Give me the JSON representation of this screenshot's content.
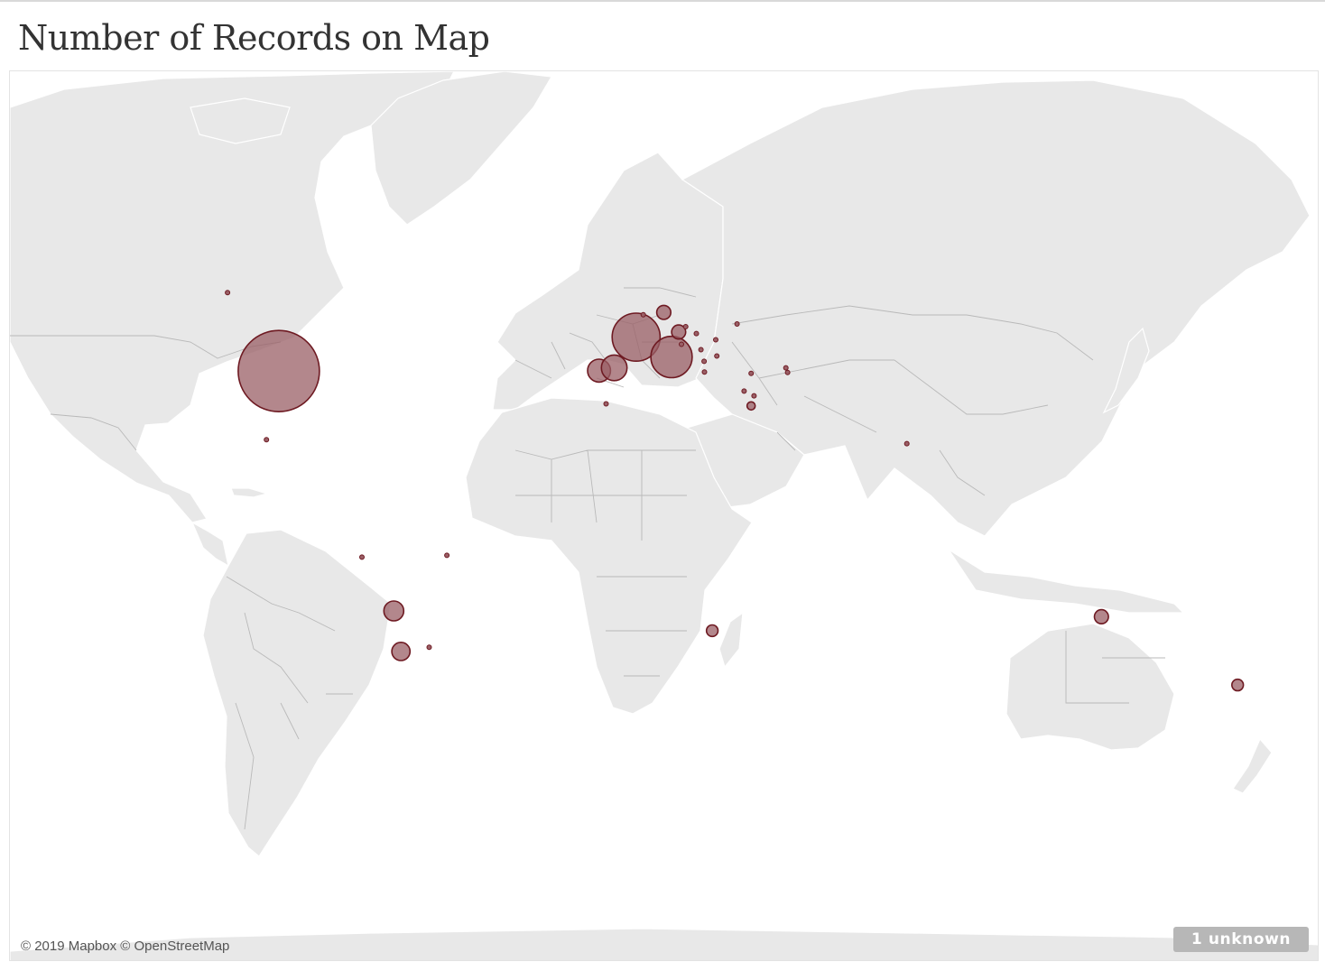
{
  "title": "Number of Records on Map",
  "attribution": "© 2019 Mapbox © OpenStreetMap",
  "unknown_indicator": "1 unknown",
  "colors": {
    "land": "#e8e8e8",
    "water": "#ffffff",
    "border": "#b9b9b9",
    "mark_fill": "#9a5f66",
    "mark_stroke": "#6e1a22",
    "badge": "#b7b7b7"
  },
  "chart_data": {
    "type": "scatter",
    "encoding": "bubble map — circle area proportional to number of records",
    "points": [
      {
        "lon": -98.5,
        "lat": 39.5,
        "size": 100
      },
      {
        "lon": 2.5,
        "lat": 46.5,
        "size": 35
      },
      {
        "lon": 12.5,
        "lat": 42.5,
        "size": 26
      },
      {
        "lon": -8.0,
        "lat": 39.6,
        "size": 8
      },
      {
        "lon": -3.7,
        "lat": 40.2,
        "size": 10
      },
      {
        "lon": 10.3,
        "lat": 51.1,
        "size": 3
      },
      {
        "lon": 14.5,
        "lat": 47.5,
        "size": 3
      },
      {
        "lon": -66.0,
        "lat": -24.0,
        "size": 6
      },
      {
        "lon": -64.0,
        "lat": -34.0,
        "size": 5
      },
      {
        "lon": 134.0,
        "lat": -25.5,
        "size": 3
      },
      {
        "lon": 172.5,
        "lat": -41.5,
        "size": 2
      },
      {
        "lon": 24.0,
        "lat": -29.0,
        "size": 2
      },
      {
        "lon": 35.0,
        "lat": 31.5,
        "size": 1
      },
      {
        "lon": 4.5,
        "lat": 50.7,
        "size": 0.2
      },
      {
        "lon": 16.5,
        "lat": 48.5,
        "size": 0.2
      },
      {
        "lon": 19.5,
        "lat": 47.2,
        "size": 0.2
      },
      {
        "lon": 25.0,
        "lat": 46.0,
        "size": 0.2
      },
      {
        "lon": 31.0,
        "lat": 49.0,
        "size": 0.2
      },
      {
        "lon": 20.8,
        "lat": 44.0,
        "size": 0.2
      },
      {
        "lon": 25.3,
        "lat": 42.7,
        "size": 0.2
      },
      {
        "lon": 15.3,
        "lat": 45.1,
        "size": 0.2
      },
      {
        "lon": 21.8,
        "lat": 39.3,
        "size": 0.2
      },
      {
        "lon": 21.7,
        "lat": 41.6,
        "size": 0.2
      },
      {
        "lon": 35.0,
        "lat": 39.0,
        "size": 0.2
      },
      {
        "lon": 33.0,
        "lat": 35.0,
        "size": 0.2
      },
      {
        "lon": 35.8,
        "lat": 33.9,
        "size": 0.2
      },
      {
        "lon": 44.8,
        "lat": 40.2,
        "size": 0.2
      },
      {
        "lon": 45.3,
        "lat": 39.2,
        "size": 0.2
      },
      {
        "lon": -6.0,
        "lat": 32.0,
        "size": 0.2
      },
      {
        "lon": 79.0,
        "lat": 22.0,
        "size": 0.2
      },
      {
        "lon": -102.0,
        "lat": 23.0,
        "size": 0.2
      },
      {
        "lon": -113.0,
        "lat": 54.5,
        "size": 0.2
      },
      {
        "lon": -75.0,
        "lat": -9.5,
        "size": 0.2
      },
      {
        "lon": -51.0,
        "lat": -9.0,
        "size": 0.2
      },
      {
        "lon": -56.0,
        "lat": -33.0,
        "size": 0.2
      }
    ]
  }
}
